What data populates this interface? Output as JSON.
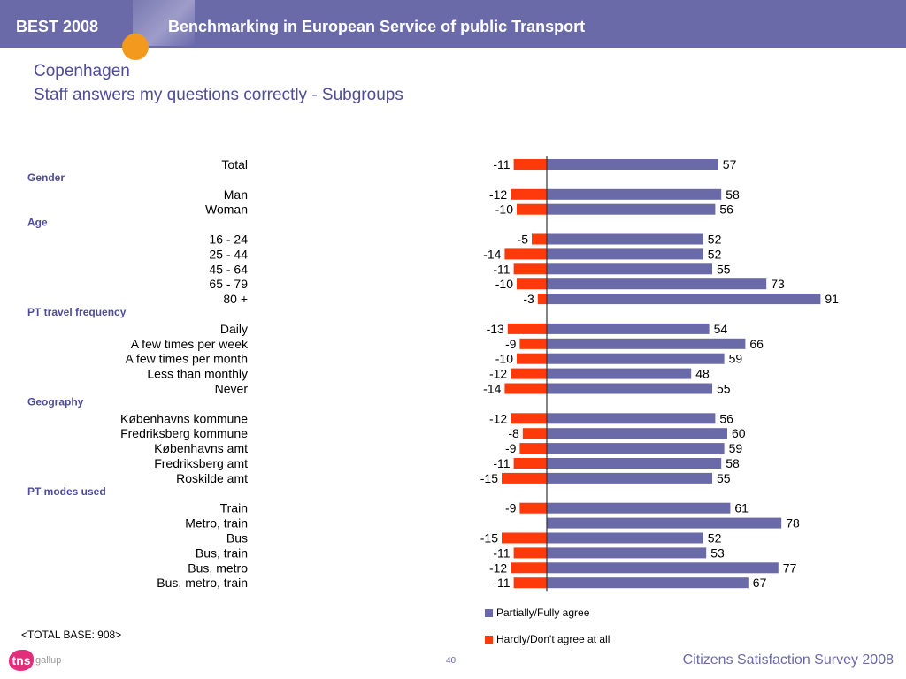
{
  "header": {
    "brand": "BEST 2008",
    "title": "Benchmarking in European Service of public Transport"
  },
  "page": {
    "title": "Copenhagen",
    "subtitle": "Staff answers my questions correctly - Subgroups"
  },
  "colors": {
    "header": "#6b6aa8",
    "agree": "#6b6aa8",
    "disagree": "#ff3a0a",
    "title": "#4e4c9a",
    "accent": "#f39a1e"
  },
  "chart_data": {
    "type": "bar",
    "orientation": "horizontal-diverging",
    "series": [
      {
        "name": "Partially/Fully agree",
        "color": "#6b6aa8"
      },
      {
        "name": "Hardly/Don't agree at all",
        "color": "#ff3a0a"
      }
    ],
    "rows": [
      {
        "kind": "item",
        "label": "Total",
        "neg": -11,
        "pos": 57
      },
      {
        "kind": "group",
        "label": "Gender"
      },
      {
        "kind": "item",
        "label": "Man",
        "neg": -12,
        "pos": 58
      },
      {
        "kind": "item",
        "label": "Woman",
        "neg": -10,
        "pos": 56
      },
      {
        "kind": "group",
        "label": "Age"
      },
      {
        "kind": "item",
        "label": "16 - 24",
        "neg": -5,
        "pos": 52
      },
      {
        "kind": "item",
        "label": "25 - 44",
        "neg": -14,
        "pos": 52
      },
      {
        "kind": "item",
        "label": "45 - 64",
        "neg": -11,
        "pos": 55
      },
      {
        "kind": "item",
        "label": "65 - 79",
        "neg": -10,
        "pos": 73
      },
      {
        "kind": "item",
        "label": "80 +",
        "neg": -3,
        "pos": 91
      },
      {
        "kind": "group",
        "label": "PT travel frequency"
      },
      {
        "kind": "item",
        "label": "Daily",
        "neg": -13,
        "pos": 54
      },
      {
        "kind": "item",
        "label": "A few times per week",
        "neg": -9,
        "pos": 66
      },
      {
        "kind": "item",
        "label": "A few times per month",
        "neg": -10,
        "pos": 59
      },
      {
        "kind": "item",
        "label": "Less than monthly",
        "neg": -12,
        "pos": 48
      },
      {
        "kind": "item",
        "label": "Never",
        "neg": -14,
        "pos": 55
      },
      {
        "kind": "group",
        "label": "Geography"
      },
      {
        "kind": "item",
        "label": "Københavns kommune",
        "neg": -12,
        "pos": 56
      },
      {
        "kind": "item",
        "label": "Fredriksberg kommune",
        "neg": -8,
        "pos": 60
      },
      {
        "kind": "item",
        "label": "Københavns amt",
        "neg": -9,
        "pos": 59
      },
      {
        "kind": "item",
        "label": "Fredriksberg amt",
        "neg": -11,
        "pos": 58
      },
      {
        "kind": "item",
        "label": "Roskilde amt",
        "neg": -15,
        "pos": 55
      },
      {
        "kind": "group",
        "label": "PT modes used"
      },
      {
        "kind": "item",
        "label": "Train",
        "neg": -9,
        "pos": 61
      },
      {
        "kind": "item",
        "label": "Metro, train",
        "neg": null,
        "pos": 78
      },
      {
        "kind": "item",
        "label": "Bus",
        "neg": -15,
        "pos": 52
      },
      {
        "kind": "item",
        "label": "Bus, train",
        "neg": -11,
        "pos": 53
      },
      {
        "kind": "item",
        "label": "Bus, metro",
        "neg": -12,
        "pos": 77
      },
      {
        "kind": "item",
        "label": "Bus, metro, train",
        "neg": -11,
        "pos": 67
      }
    ]
  },
  "legend": {
    "agree": "Partially/Fully agree",
    "disagree": "Hardly/Don't agree at all"
  },
  "footer": {
    "base": "<TOTAL BASE: 908>",
    "logo_mark": "tns",
    "logo_text": "gallup",
    "page_number": "40",
    "survey": "Citizens Satisfaction Survey 2008"
  }
}
